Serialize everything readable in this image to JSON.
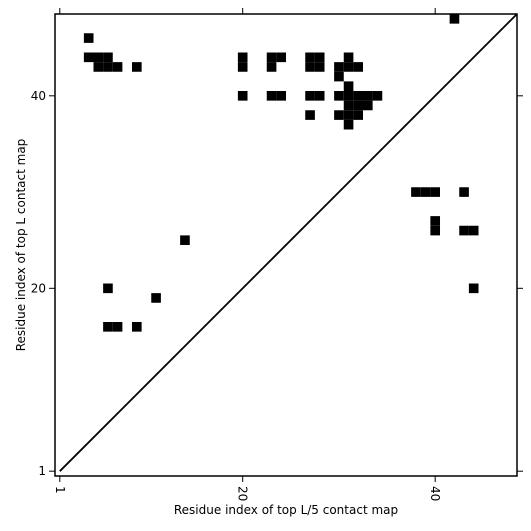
{
  "chart_data": {
    "type": "heatmap",
    "xlabel": "Residue index of top L/5 contact map",
    "ylabel": "Residue index of top L contact map",
    "x_ticks": [
      1,
      20,
      40
    ],
    "y_ticks": [
      1,
      20,
      40
    ],
    "xlim": [
      0.5,
      48.5
    ],
    "ylim": [
      0.5,
      48.5
    ],
    "diagonal_line": true,
    "cell_color": "#000000",
    "contacts_lower_triangle": [
      [
        38,
        30
      ],
      [
        39,
        30
      ],
      [
        40,
        30
      ],
      [
        43,
        30
      ],
      [
        40,
        27
      ],
      [
        40,
        26
      ],
      [
        43,
        26
      ],
      [
        44,
        26
      ],
      [
        44,
        20
      ]
    ],
    "contacts_upper_triangle": [
      [
        4,
        46
      ],
      [
        4,
        44
      ],
      [
        5,
        44
      ],
      [
        6,
        44
      ],
      [
        6,
        43
      ],
      [
        5,
        43
      ],
      [
        7,
        43
      ],
      [
        9,
        43
      ],
      [
        20,
        44
      ],
      [
        20,
        43
      ],
      [
        20,
        40
      ],
      [
        23,
        44
      ],
      [
        24,
        44
      ],
      [
        23,
        43
      ],
      [
        23,
        40
      ],
      [
        24,
        40
      ],
      [
        27,
        44
      ],
      [
        28,
        44
      ],
      [
        27,
        43
      ],
      [
        28,
        43
      ],
      [
        27,
        40
      ],
      [
        28,
        40
      ],
      [
        27,
        38
      ],
      [
        30,
        43
      ],
      [
        31,
        43
      ],
      [
        32,
        43
      ],
      [
        31,
        44
      ],
      [
        30,
        42
      ],
      [
        31,
        41
      ],
      [
        30,
        40
      ],
      [
        31,
        40
      ],
      [
        32,
        40
      ],
      [
        33,
        40
      ],
      [
        34,
        40
      ],
      [
        31,
        39
      ],
      [
        32,
        39
      ],
      [
        33,
        39
      ],
      [
        30,
        38
      ],
      [
        31,
        38
      ],
      [
        32,
        38
      ],
      [
        31,
        37
      ],
      [
        6,
        20
      ],
      [
        11,
        19
      ],
      [
        6,
        16
      ],
      [
        7,
        16
      ],
      [
        9,
        16
      ],
      [
        14,
        25
      ]
    ],
    "top_cell": [
      42,
      48
    ]
  }
}
